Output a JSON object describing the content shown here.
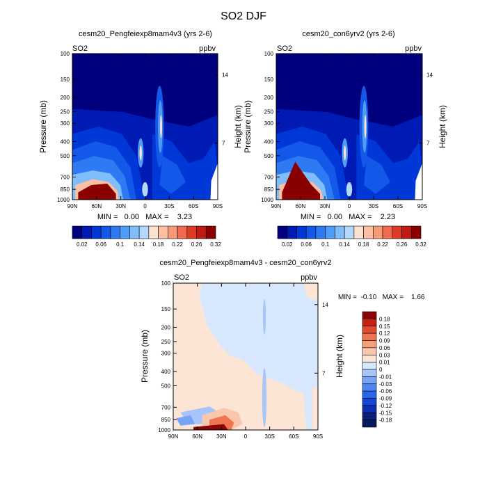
{
  "figure_title": "SO2 DJF",
  "colors": {
    "background": "#ffffff",
    "field_palette": [
      "#00007f",
      "#001bb4",
      "#0038d8",
      "#1358e8",
      "#2d7af2",
      "#4f9bf8",
      "#7fbdfb",
      "#b4d8fd",
      "#fde2cf",
      "#fbc0a3",
      "#f89a78",
      "#f06b4d",
      "#de3a26",
      "#c01a12",
      "#8a0000"
    ],
    "diff_palette": [
      "#0a1f7a",
      "#0e2fb0",
      "#1345d6",
      "#2a66ea",
      "#4d86f2",
      "#75a4f6",
      "#a6c5fa",
      "#d7e7fd",
      "#fde5d6",
      "#fbc7ac",
      "#f6a07c",
      "#ef7452",
      "#e34a2c",
      "#c92014",
      "#8a0606"
    ]
  },
  "chart_data": [
    {
      "type": "heatmap",
      "panel": "left",
      "title": "cesm20_Pengfeiexp8mam4v3 (yrs 2-6)",
      "field_label": "SO2",
      "units": "ppbv",
      "ylabel": "Pressure (mb)",
      "ylabel_right": "Height (km)",
      "x_ticks": [
        "90N",
        "60N",
        "30N",
        "0",
        "30S",
        "60S",
        "90S"
      ],
      "y_ticks": [
        "100",
        "150",
        "200",
        "250",
        "300",
        "400",
        "500",
        "700",
        "850",
        "1000"
      ],
      "right_ticks": [
        "14",
        "7"
      ],
      "min_max_text": "MIN =   0.00   MAX =    3.23",
      "colorbar_labels": [
        "0.02",
        "0.06",
        "0.1",
        "0.14",
        "0.18",
        "0.22",
        "0.26",
        "0.32"
      ]
    },
    {
      "type": "heatmap",
      "panel": "right",
      "title": "cesm20_con6yrv2 (yrs 2-6)",
      "field_label": "SO2",
      "units": "ppbv",
      "ylabel": "Pressure (mb)",
      "ylabel_right": "Height (km)",
      "x_ticks": [
        "90N",
        "60N",
        "30N",
        "0",
        "30S",
        "60S",
        "90S"
      ],
      "y_ticks": [
        "100",
        "150",
        "200",
        "250",
        "300",
        "400",
        "500",
        "700",
        "850",
        "1000"
      ],
      "right_ticks": [
        "14",
        "7"
      ],
      "min_max_text": "MIN =   0.00   MAX =    2.23",
      "colorbar_labels": [
        "0.02",
        "0.06",
        "0.1",
        "0.14",
        "0.18",
        "0.22",
        "0.26",
        "0.32"
      ]
    },
    {
      "type": "heatmap",
      "panel": "bottom",
      "title": "cesm20_Pengfeiexp8mam4v3 - cesm20_con6yrv2",
      "field_label": "SO2",
      "units": "ppbv",
      "ylabel": "Pressure (mb)",
      "ylabel_right": "Height (km)",
      "x_ticks": [
        "90N",
        "60N",
        "30N",
        "0",
        "30S",
        "60S",
        "90S"
      ],
      "y_ticks": [
        "100",
        "150",
        "200",
        "250",
        "300",
        "400",
        "500",
        "700",
        "850",
        "1000"
      ],
      "right_ticks": [
        "14",
        "7"
      ],
      "min_max_text": "MIN =  -0.10   MAX =    1.66",
      "colorbar_labels": [
        "0.18",
        "0.15",
        "0.12",
        "0.09",
        "0.06",
        "0.03",
        "0.01",
        "0",
        "-0.01",
        "-0.03",
        "-0.06",
        "-0.09",
        "-0.12",
        "-0.15",
        "-0.18"
      ]
    }
  ]
}
